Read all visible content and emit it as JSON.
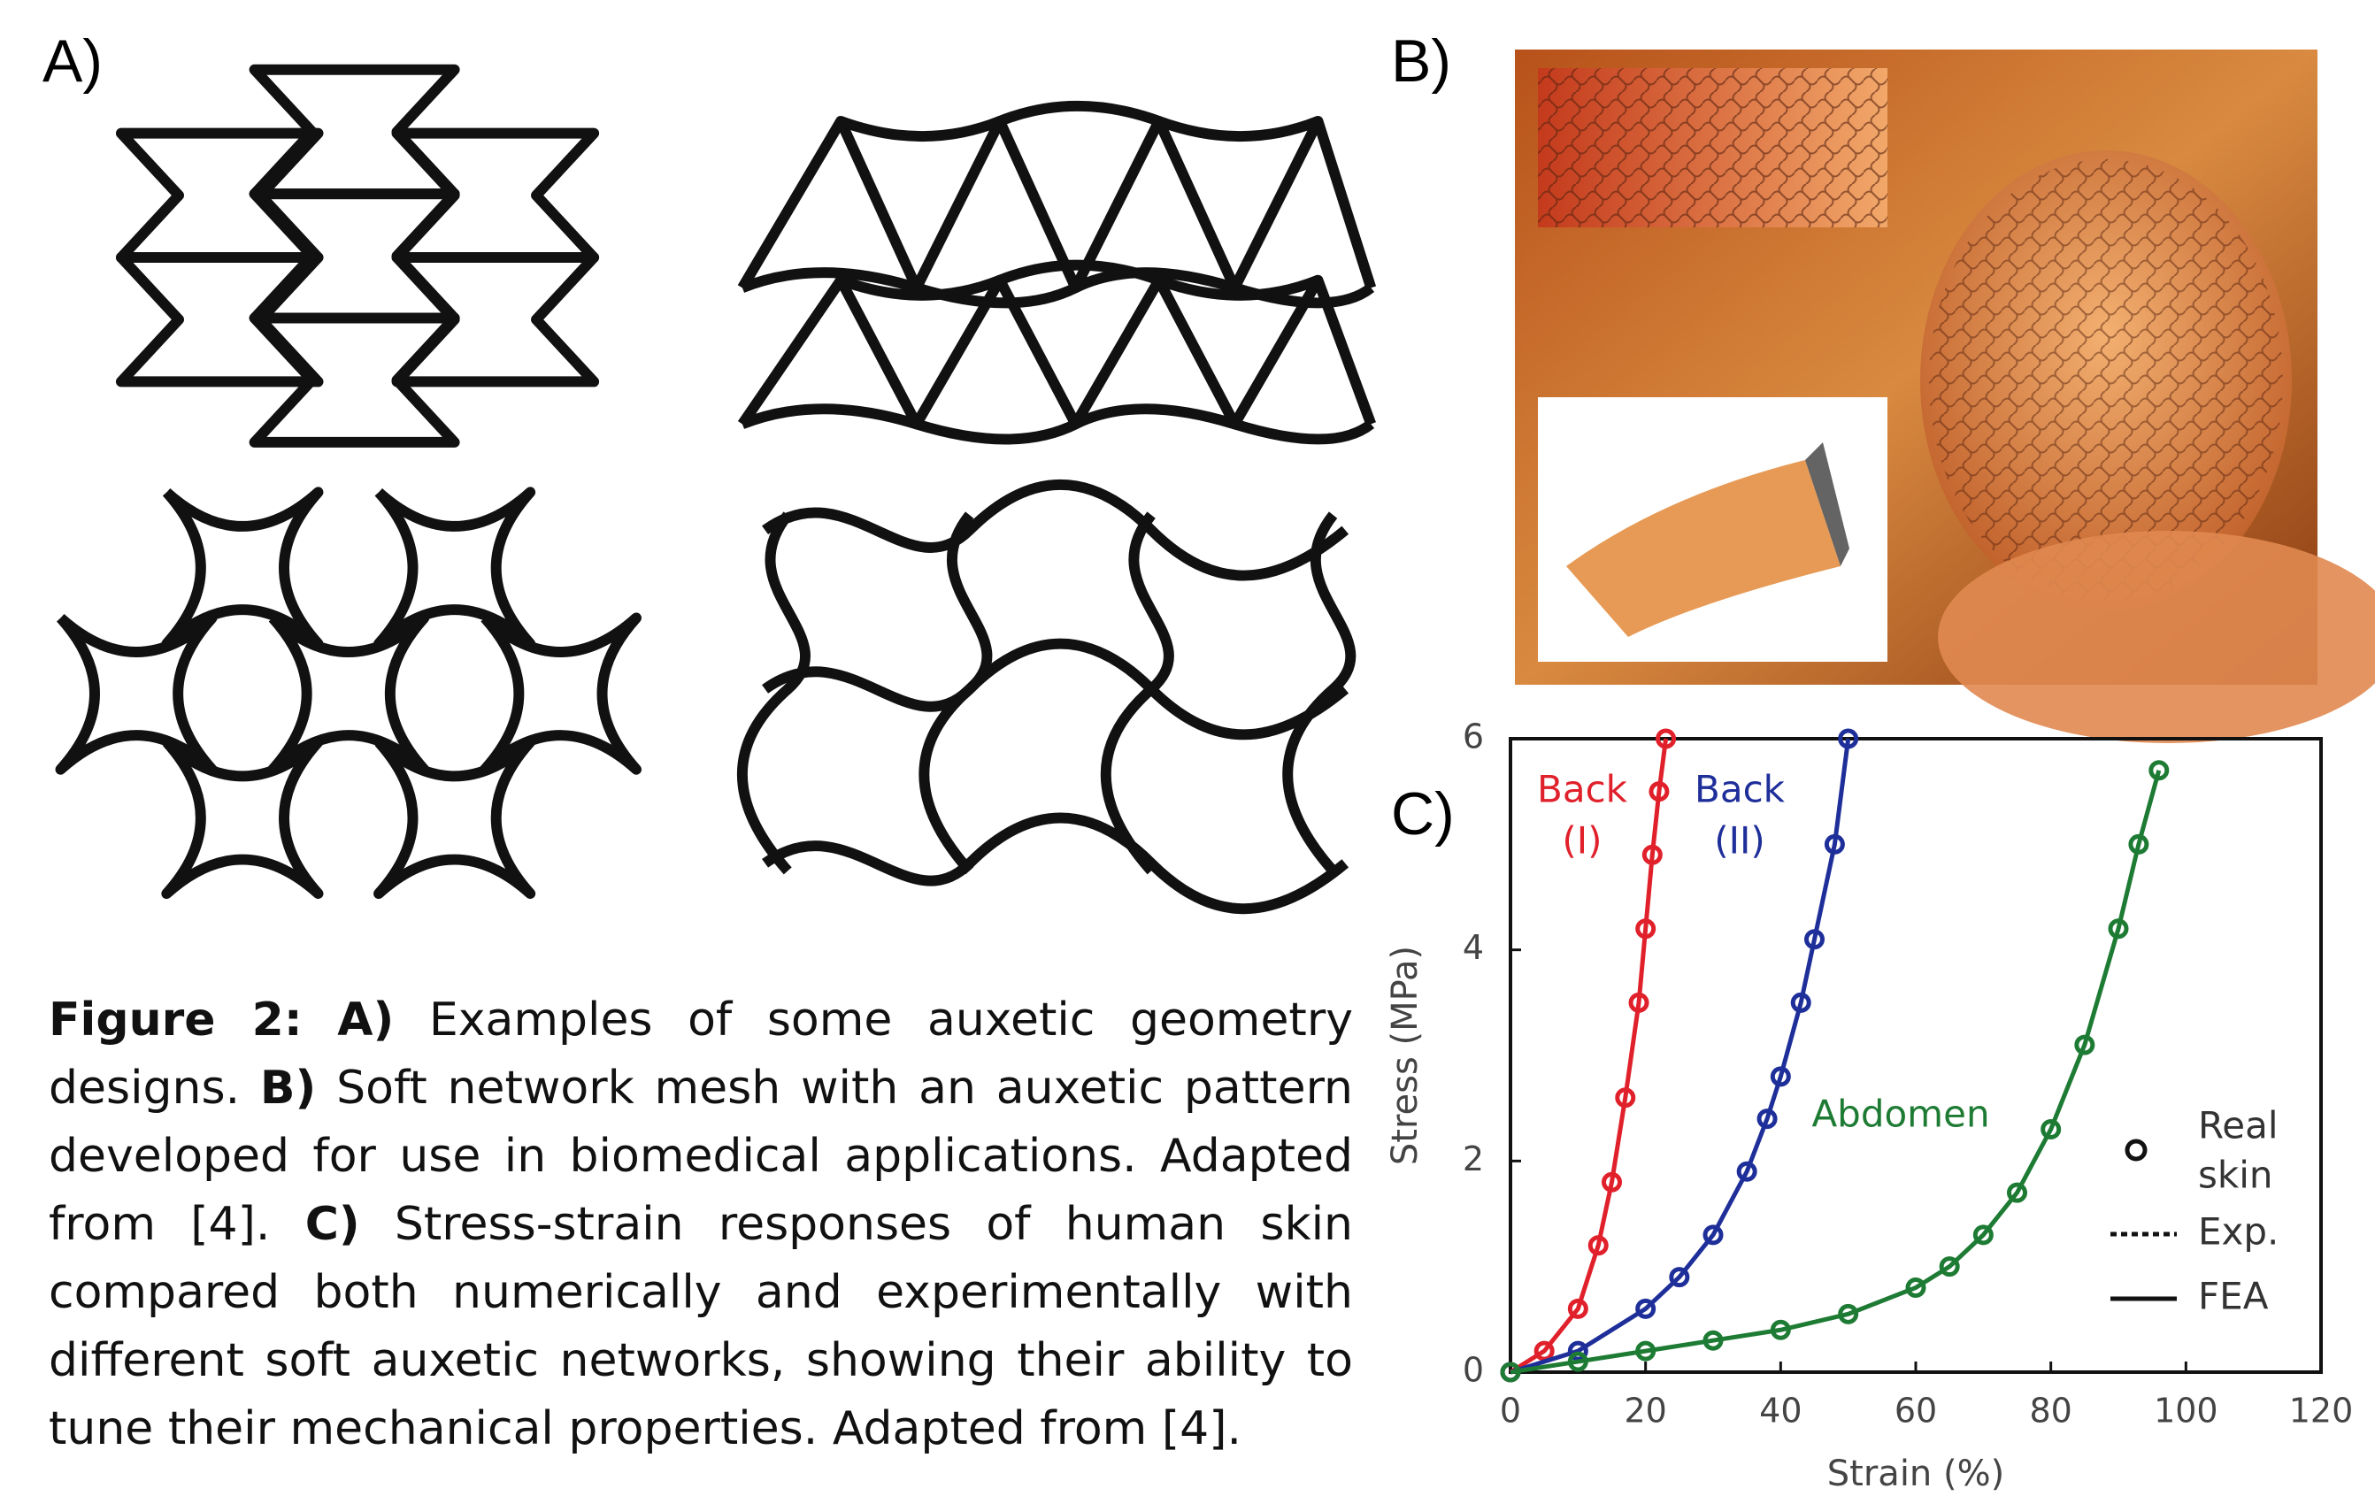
{
  "panels": {
    "a": "A)",
    "b": "B)",
    "c": "C)"
  },
  "caption": {
    "figure": "Figure 2:",
    "parts": [
      {
        "label": "A)",
        "text": " Examples of some auxetic geometry designs. "
      },
      {
        "label": "B)",
        "text": " Soft network mesh with an auxetic pattern developed for use in biomedical applications. Adapted from [4]. "
      },
      {
        "label": "C)",
        "text": " Stress-strain responses of human skin compared both numerically and experimentally with different soft auxetic networks, showing their ability to tune their mechanical properties. Adapted from [4]."
      }
    ]
  },
  "chart_data": {
    "type": "line",
    "xlabel": "Strain (%)",
    "ylabel": "Stress (MPa)",
    "xlim": [
      0,
      120
    ],
    "ylim": [
      0,
      6
    ],
    "xticks": [
      0,
      20,
      40,
      60,
      80,
      100,
      120
    ],
    "yticks": [
      0,
      2,
      4,
      6
    ],
    "series": [
      {
        "label": [
          "Back",
          "(I)"
        ],
        "color": "#e0202a",
        "x": [
          0,
          5,
          10,
          13,
          15,
          17,
          19,
          20,
          21,
          22,
          23
        ],
        "values": [
          0,
          0.2,
          0.6,
          1.2,
          1.8,
          2.6,
          3.5,
          4.2,
          4.9,
          5.5,
          6.0
        ]
      },
      {
        "label": [
          "Back",
          "(II)"
        ],
        "color": "#1f2f9a",
        "x": [
          0,
          10,
          20,
          25,
          30,
          35,
          38,
          40,
          43,
          45,
          48,
          50
        ],
        "values": [
          0,
          0.2,
          0.6,
          0.9,
          1.3,
          1.9,
          2.4,
          2.8,
          3.5,
          4.1,
          5.0,
          6.0
        ]
      },
      {
        "label": [
          "Abdomen"
        ],
        "color": "#1e7b34",
        "x": [
          0,
          10,
          20,
          30,
          40,
          50,
          60,
          65,
          70,
          75,
          80,
          85,
          90,
          93,
          96
        ],
        "values": [
          0,
          0.1,
          0.2,
          0.3,
          0.4,
          0.55,
          0.8,
          1.0,
          1.3,
          1.7,
          2.3,
          3.1,
          4.2,
          5.0,
          5.7
        ]
      }
    ],
    "legend": [
      {
        "label": [
          "Real",
          "skin"
        ],
        "style": "circle"
      },
      {
        "label": [
          "Exp."
        ],
        "style": "dotted"
      },
      {
        "label": [
          "FEA"
        ],
        "style": "solid"
      }
    ]
  }
}
